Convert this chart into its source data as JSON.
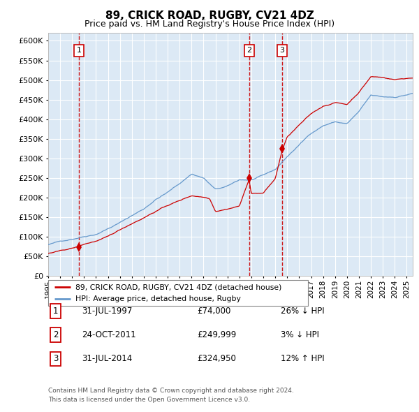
{
  "title": "89, CRICK ROAD, RUGBY, CV21 4DZ",
  "subtitle": "Price paid vs. HM Land Registry's House Price Index (HPI)",
  "legend_label_red": "89, CRICK ROAD, RUGBY, CV21 4DZ (detached house)",
  "legend_label_blue": "HPI: Average price, detached house, Rugby",
  "footer_line1": "Contains HM Land Registry data © Crown copyright and database right 2024.",
  "footer_line2": "This data is licensed under the Open Government Licence v3.0.",
  "transactions": [
    {
      "num": 1,
      "date": "31-JUL-1997",
      "price": 74000,
      "pct": "26%",
      "dir": "↓",
      "year": 1997.58
    },
    {
      "num": 2,
      "date": "24-OCT-2011",
      "price": 249999,
      "pct": "3%",
      "dir": "↓",
      "year": 2011.81
    },
    {
      "num": 3,
      "date": "31-JUL-2014",
      "price": 324950,
      "pct": "12%",
      "dir": "↑",
      "year": 2014.58
    }
  ],
  "ylim": [
    0,
    620000
  ],
  "xlim_start": 1995.0,
  "xlim_end": 2025.5,
  "bg_color": "#dce9f5",
  "red_color": "#cc0000",
  "blue_color": "#6699cc",
  "grid_color": "#ffffff",
  "dashed_color": "#cc0000",
  "yticks": [
    0,
    50000,
    100000,
    150000,
    200000,
    250000,
    300000,
    350000,
    400000,
    450000,
    500000,
    550000,
    600000
  ]
}
